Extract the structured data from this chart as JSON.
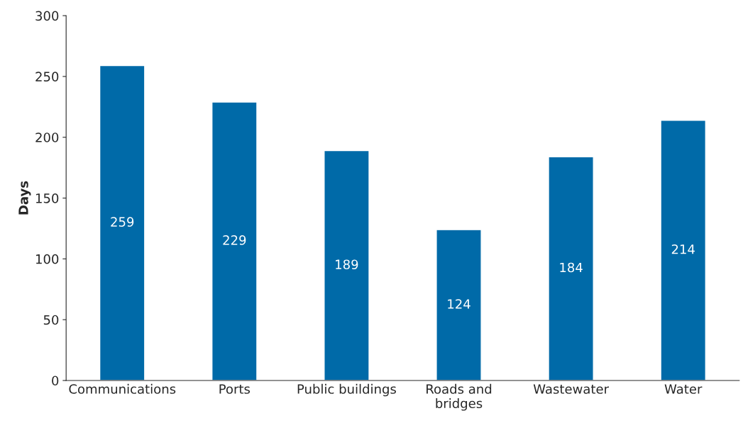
{
  "chart_data": {
    "type": "bar",
    "ylabel": "Days",
    "categories": [
      "Communications",
      "Ports",
      "Public buildings",
      "Roads and\nbridges",
      "Wastewater",
      "Water"
    ],
    "values": [
      259,
      229,
      189,
      124,
      184,
      214
    ],
    "color": "#006aa8",
    "ylim": [
      0,
      300
    ],
    "yticks": [
      0,
      50,
      100,
      150,
      200,
      250,
      300
    ],
    "data_labels": true,
    "grid": false,
    "legend": false
  }
}
